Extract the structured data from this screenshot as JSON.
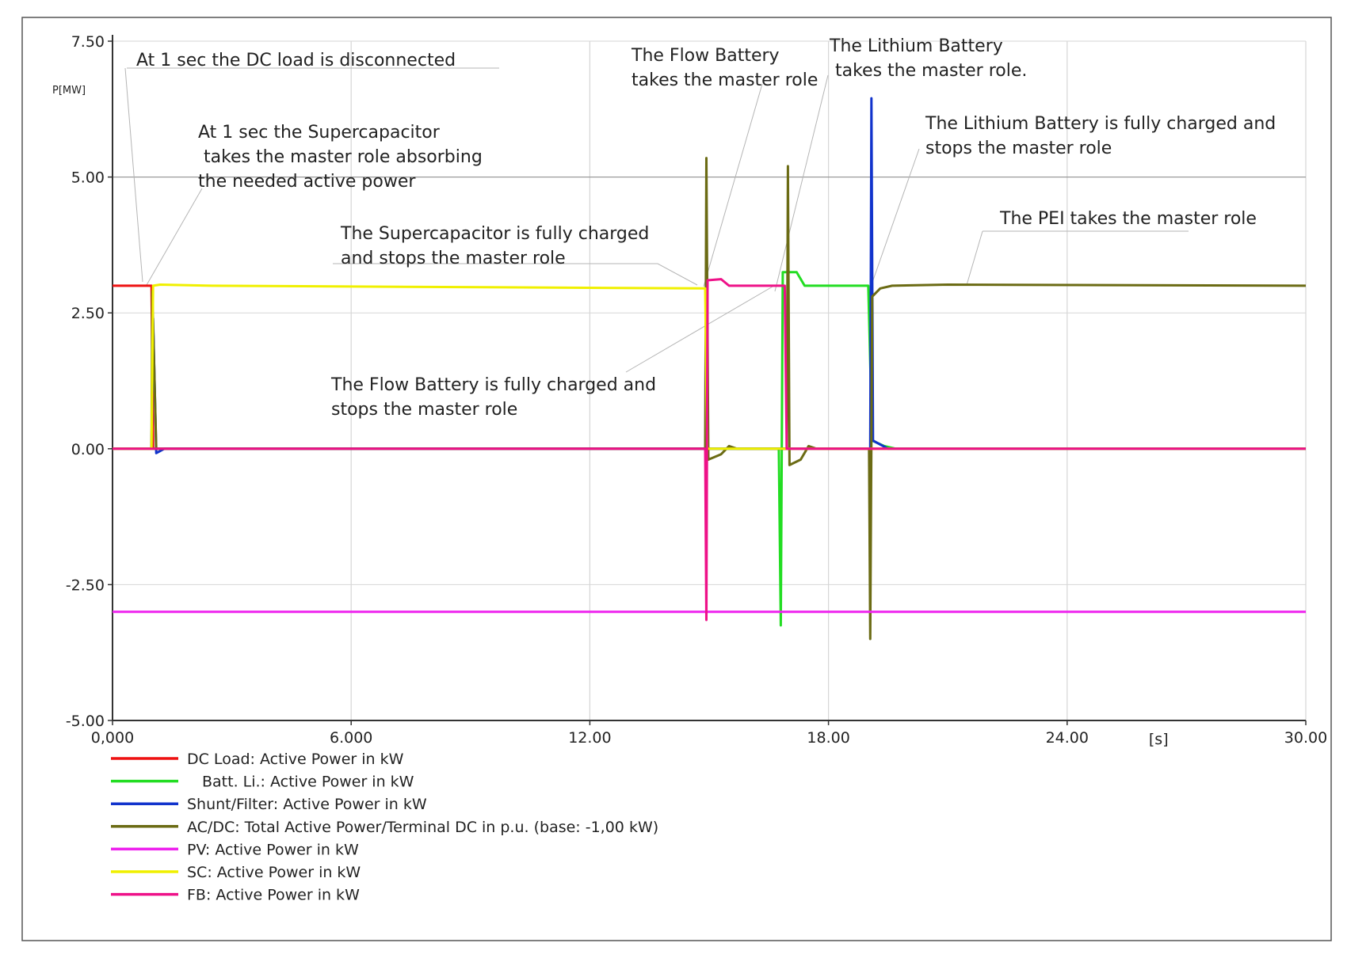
{
  "chart_data": {
    "type": "line",
    "ylabel": "P[MW]",
    "xlabel": "[s]",
    "xlim": [
      0,
      30
    ],
    "ylim": [
      -5,
      7.5
    ],
    "x_ticks": [
      {
        "value": 0,
        "label": "0,000"
      },
      {
        "value": 6,
        "label": "6.000"
      },
      {
        "value": 12,
        "label": "12.00"
      },
      {
        "value": 18,
        "label": "18.00"
      },
      {
        "value": 24,
        "label": "24.00"
      },
      {
        "value": 30,
        "label": "30.00"
      }
    ],
    "y_ticks": [
      {
        "value": 7.5,
        "label": "7.50"
      },
      {
        "value": 5,
        "label": "5.00"
      },
      {
        "value": 2.5,
        "label": "2.50"
      },
      {
        "value": 0,
        "label": "0.00"
      },
      {
        "value": -2.5,
        "label": "-2.50"
      },
      {
        "value": -5,
        "label": "-5.00"
      }
    ],
    "grid": true,
    "legend_position": "bottom-left",
    "series": [
      {
        "name": "DC Load: Active Power in kW",
        "color": "#ee1111",
        "points": [
          [
            0,
            3.0
          ],
          [
            0.98,
            3.0
          ],
          [
            1.02,
            0.0
          ],
          [
            30,
            0.0
          ]
        ]
      },
      {
        "name": "Batt. Li.: Active Power in kW",
        "color": "#22dd22",
        "points": [
          [
            0,
            0
          ],
          [
            16.75,
            0
          ],
          [
            16.8,
            -3.25
          ],
          [
            16.85,
            3.25
          ],
          [
            17.2,
            3.25
          ],
          [
            17.4,
            3.0
          ],
          [
            19.0,
            3.0
          ],
          [
            19.1,
            0.15
          ],
          [
            19.4,
            0.05
          ],
          [
            19.7,
            0
          ],
          [
            30,
            0
          ]
        ]
      },
      {
        "name": "Shunt/Filter: Active Power in kW",
        "color": "#1133cc",
        "points": [
          [
            0,
            0
          ],
          [
            0.98,
            0
          ],
          [
            1.02,
            2.4
          ],
          [
            1.1,
            -0.08
          ],
          [
            1.3,
            0
          ],
          [
            19.05,
            0
          ],
          [
            19.08,
            6.45
          ],
          [
            19.12,
            0.15
          ],
          [
            19.5,
            0
          ],
          [
            30,
            0
          ]
        ]
      },
      {
        "name": "AC/DC: Total Active Power/Terminal DC in p.u. (base: -1,00 kW)",
        "color": "#6b6b14",
        "points": [
          [
            0,
            0
          ],
          [
            0.98,
            0
          ],
          [
            1.0,
            2.9
          ],
          [
            1.1,
            0
          ],
          [
            14.9,
            0
          ],
          [
            14.93,
            5.35
          ],
          [
            14.98,
            -0.2
          ],
          [
            15.3,
            -0.1
          ],
          [
            15.5,
            0.05
          ],
          [
            15.7,
            0
          ],
          [
            16.95,
            0
          ],
          [
            16.98,
            5.2
          ],
          [
            17.02,
            -0.3
          ],
          [
            17.3,
            -0.2
          ],
          [
            17.5,
            0.05
          ],
          [
            17.7,
            0
          ],
          [
            19.02,
            0
          ],
          [
            19.05,
            -3.5
          ],
          [
            19.1,
            2.8
          ],
          [
            19.3,
            2.95
          ],
          [
            19.6,
            3.0
          ],
          [
            21.0,
            3.02
          ],
          [
            30,
            3.0
          ]
        ]
      },
      {
        "name": "PV: Active Power in kW",
        "color": "#ee22ee",
        "points": [
          [
            0,
            -3.0
          ],
          [
            30,
            -3.0
          ]
        ]
      },
      {
        "name": "SC: Active Power in kW",
        "color": "#f0f000",
        "points": [
          [
            0,
            0
          ],
          [
            0.98,
            0
          ],
          [
            1.02,
            3.0
          ],
          [
            1.2,
            3.02
          ],
          [
            2.5,
            3.0
          ],
          [
            14.9,
            2.95
          ],
          [
            14.95,
            0
          ],
          [
            30,
            0
          ]
        ]
      },
      {
        "name": "FB: Active Power in kW",
        "color": "#ee1188",
        "points": [
          [
            0,
            0
          ],
          [
            14.9,
            0
          ],
          [
            14.93,
            -3.15
          ],
          [
            14.96,
            3.1
          ],
          [
            15.3,
            3.12
          ],
          [
            15.5,
            3.0
          ],
          [
            16.9,
            3.0
          ],
          [
            16.95,
            0
          ],
          [
            30,
            0
          ]
        ]
      }
    ],
    "annotations": [
      {
        "lines": [
          "At 1 sec the DC load is disconnected"
        ]
      },
      {
        "lines": [
          "At 1 sec the Supercapacitor",
          " takes the  master role absorbing",
          "the needed active power"
        ]
      },
      {
        "lines": [
          "The Supercapacitor is fully charged",
          "and stops the master role"
        ]
      },
      {
        "lines": [
          "The Flow Battery",
          "takes the master role"
        ]
      },
      {
        "lines": [
          "The Lithium Battery",
          " takes the master role."
        ]
      },
      {
        "lines": [
          "The Lithium Battery is fully charged and",
          "stops the master role"
        ]
      },
      {
        "lines": [
          "The PEI takes the master role"
        ]
      },
      {
        "lines": [
          "The Flow Battery is fully charged and",
          "stops the master role"
        ]
      }
    ]
  }
}
